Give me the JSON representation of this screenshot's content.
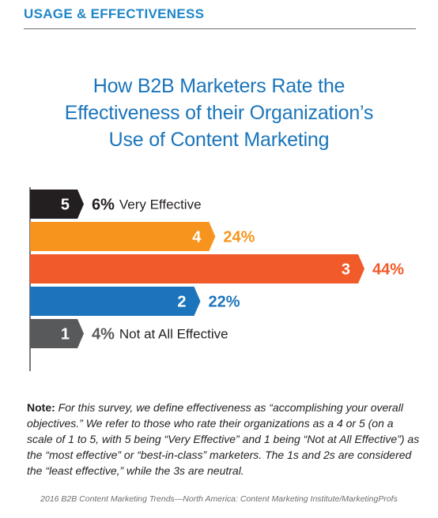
{
  "section_header": "USAGE & EFFECTIVENESS",
  "title_lines": [
    "How B2B Marketers Rate the",
    "Effectiveness of their Organization’s",
    "Use of Content Marketing"
  ],
  "chart_data": {
    "type": "bar",
    "orientation": "horizontal",
    "categories": [
      "5",
      "4",
      "3",
      "2",
      "1"
    ],
    "values": [
      6,
      24,
      44,
      22,
      4
    ],
    "value_labels": [
      "6%",
      "24%",
      "44%",
      "22%",
      "4%"
    ],
    "category_descriptions": [
      "Very Effective",
      "",
      "",
      "",
      "Not at All Effective"
    ],
    "colors": [
      "#231f20",
      "#f7941d",
      "#f15a29",
      "#1c75bc",
      "#58595b"
    ],
    "value_label_colors": [
      "#231f20",
      "#f7941d",
      "#f15a29",
      "#1c75bc",
      "#58595b"
    ],
    "xlim": [
      0,
      44
    ],
    "grid": false
  },
  "note": {
    "label": "Note:",
    "text": " For this survey, we define effectiveness as “accomplishing your overall objectives.” We refer to those who rate their organizations as a 4 or 5 (on a scale of 1 to 5, with 5 being “Very Effective” and 1 being “Not at All Effective”) as the “most effective” or “best-in-class” marketers. The 1s and 2s are considered the “least effective,” while the 3s are neutral."
  },
  "source": "2016 B2B Content Marketing Trends—North America: Content Marketing Institute/MarketingProfs",
  "colors": {
    "header": "#1f86c8",
    "title": "#1b75bb",
    "axis": "#231f20"
  }
}
